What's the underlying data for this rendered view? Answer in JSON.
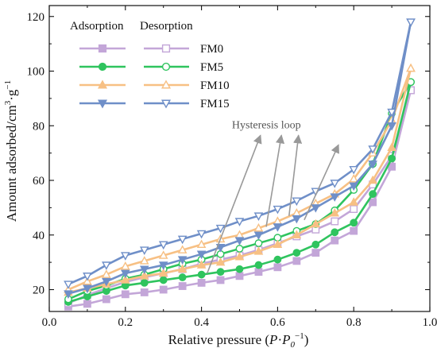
{
  "chart_data": {
    "type": "line",
    "xlabel_prefix": "Relative pressure (",
    "xlabel_sym1": "P",
    "xlabel_dot": "·",
    "xlabel_sym2": "P",
    "xlabel_sub": "0",
    "xlabel_sup": "−1",
    "xlabel_suffix": ")",
    "ylabel_prefix": "Amount adsorbed/cm",
    "ylabel_sup1": "3",
    "ylabel_mid": "·g",
    "ylabel_sup2": "−1",
    "xlim": [
      0.0,
      1.0
    ],
    "ylim": [
      12,
      124
    ],
    "xticks": [
      0.0,
      0.2,
      0.4,
      0.6,
      0.8,
      1.0
    ],
    "xtick_labels": [
      "0.0",
      "0.2",
      "0.4",
      "0.6",
      "0.8",
      "1.0"
    ],
    "yticks": [
      20,
      40,
      60,
      80,
      100,
      120
    ],
    "ytick_labels": [
      "20",
      "40",
      "60",
      "80",
      "100",
      "120"
    ],
    "grid": false,
    "legend_position": "top-left",
    "legend_headers": [
      "Adsorption",
      "Desorption"
    ],
    "annotation": "Hysteresis loop",
    "series": [
      {
        "name": "FM0",
        "color": "#c3a6d8",
        "marker": "square",
        "adsorption": {
          "x": [
            0.05,
            0.1,
            0.15,
            0.2,
            0.25,
            0.3,
            0.35,
            0.4,
            0.45,
            0.5,
            0.55,
            0.6,
            0.65,
            0.7,
            0.75,
            0.8,
            0.85,
            0.9,
            0.95
          ],
          "y": [
            13.8,
            14.8,
            16.5,
            18.3,
            19.0,
            20.0,
            21.3,
            22.5,
            23.5,
            25.0,
            26.5,
            28.2,
            30.5,
            33.5,
            38.0,
            41.5,
            52.0,
            65.0,
            93.0
          ]
        },
        "desorption": {
          "x": [
            0.95,
            0.9,
            0.85,
            0.8,
            0.75,
            0.7,
            0.65,
            0.6,
            0.55,
            0.5,
            0.45,
            0.4,
            0.35,
            0.3,
            0.25,
            0.2,
            0.15,
            0.1,
            0.05
          ],
          "y": [
            93.0,
            69.0,
            58.5,
            49.5,
            45.0,
            42.0,
            39.5,
            37.0,
            34.5,
            32.5,
            31.0,
            29.5,
            27.5,
            26.0,
            24.5,
            22.8,
            20.5,
            18.0,
            15.0
          ]
        }
      },
      {
        "name": "FM5",
        "color": "#2fc45e",
        "marker": "circle",
        "adsorption": {
          "x": [
            0.05,
            0.1,
            0.15,
            0.2,
            0.25,
            0.3,
            0.35,
            0.4,
            0.45,
            0.5,
            0.55,
            0.6,
            0.65,
            0.7,
            0.75,
            0.8,
            0.85,
            0.9,
            0.95
          ],
          "y": [
            15.5,
            17.5,
            19.5,
            21.5,
            22.5,
            23.5,
            24.5,
            25.5,
            26.5,
            27.5,
            29.0,
            31.0,
            33.5,
            36.5,
            41.0,
            44.5,
            55.0,
            68.0,
            96.0
          ]
        },
        "desorption": {
          "x": [
            0.95,
            0.9,
            0.85,
            0.8,
            0.75,
            0.7,
            0.65,
            0.6,
            0.55,
            0.5,
            0.45,
            0.4,
            0.35,
            0.3,
            0.25,
            0.2,
            0.15,
            0.1,
            0.05
          ],
          "y": [
            96.0,
            84.5,
            66.0,
            56.5,
            49.0,
            44.0,
            41.5,
            39.0,
            37.0,
            35.0,
            33.0,
            31.0,
            29.5,
            27.5,
            25.5,
            24.0,
            21.5,
            19.5,
            16.5
          ]
        }
      },
      {
        "name": "FM10",
        "color": "#f7c084",
        "marker": "triangle-up",
        "adsorption": {
          "x": [
            0.05,
            0.1,
            0.15,
            0.2,
            0.25,
            0.3,
            0.35,
            0.4,
            0.45,
            0.5,
            0.55,
            0.6,
            0.65,
            0.7,
            0.75,
            0.8,
            0.85,
            0.9,
            0.95
          ],
          "y": [
            19.0,
            20.5,
            22.0,
            23.5,
            25.0,
            26.0,
            27.5,
            29.0,
            30.0,
            32.0,
            34.0,
            36.5,
            40.0,
            44.0,
            48.0,
            52.0,
            60.0,
            72.0,
            101.0
          ]
        },
        "desorption": {
          "x": [
            0.95,
            0.9,
            0.85,
            0.8,
            0.75,
            0.7,
            0.65,
            0.6,
            0.55,
            0.5,
            0.45,
            0.4,
            0.35,
            0.3,
            0.25,
            0.2,
            0.15,
            0.1,
            0.05
          ],
          "y": [
            101.0,
            82.0,
            70.0,
            60.5,
            55.0,
            51.5,
            48.0,
            45.0,
            42.5,
            40.0,
            38.5,
            36.5,
            34.5,
            32.5,
            30.5,
            28.5,
            25.5,
            23.0,
            20.0
          ]
        }
      },
      {
        "name": "FM15",
        "color": "#6f8fc8",
        "marker": "triangle-down",
        "adsorption": {
          "x": [
            0.05,
            0.1,
            0.15,
            0.2,
            0.25,
            0.3,
            0.35,
            0.4,
            0.45,
            0.5,
            0.55,
            0.6,
            0.65,
            0.7,
            0.75,
            0.8,
            0.85,
            0.9,
            0.95
          ],
          "y": [
            18.5,
            20.5,
            23.0,
            26.0,
            27.5,
            29.0,
            31.0,
            33.0,
            35.5,
            38.0,
            40.0,
            43.0,
            46.0,
            50.0,
            54.0,
            58.0,
            66.0,
            80.0,
            118.0
          ]
        },
        "desorption": {
          "x": [
            0.95,
            0.9,
            0.85,
            0.8,
            0.75,
            0.7,
            0.65,
            0.6,
            0.55,
            0.5,
            0.45,
            0.4,
            0.35,
            0.3,
            0.25,
            0.2,
            0.15,
            0.1,
            0.05
          ],
          "y": [
            118.0,
            85.0,
            71.5,
            64.0,
            59.0,
            56.0,
            52.5,
            49.5,
            47.0,
            45.0,
            42.5,
            40.5,
            38.5,
            36.5,
            34.5,
            32.5,
            29.0,
            25.0,
            22.0
          ]
        }
      }
    ]
  }
}
